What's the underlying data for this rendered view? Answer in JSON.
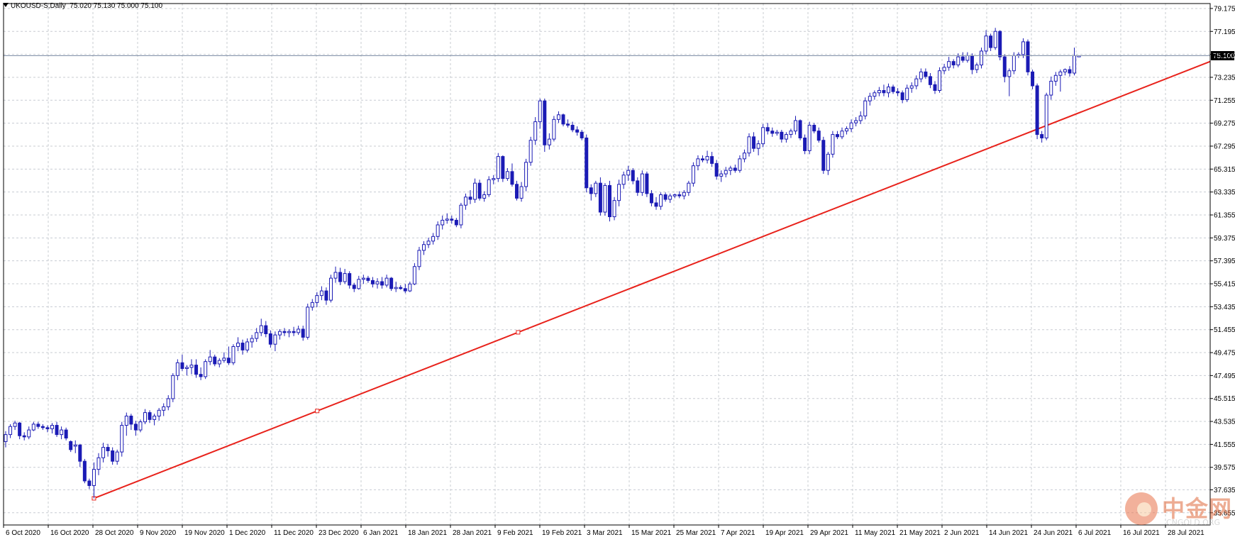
{
  "header": {
    "symbol": "UKOUSD-S,Daily",
    "ohlc": "75.020 75.130 75.000 75.100"
  },
  "watermark": {
    "title": "中金网",
    "subtitle": "CNGOLD.ORG"
  },
  "colors": {
    "background": "#ffffff",
    "grid": "#c8ccd2",
    "candle": "#1b1bb5",
    "trendline": "#e8221b",
    "price_line": "#8090a8",
    "price_tag_bg": "#000000",
    "price_tag_text": "#ffffff"
  },
  "chart_data": {
    "type": "candlestick",
    "symbol": "UKOUSD-S",
    "timeframe": "Daily",
    "current_price": 75.1,
    "current_price_label": "75.100",
    "ylim": [
      34.6,
      79.6
    ],
    "y_ticks": [
      "35.655",
      "37.635",
      "39.575",
      "41.555",
      "43.535",
      "45.515",
      "47.495",
      "49.475",
      "51.455",
      "53.435",
      "55.415",
      "57.395",
      "59.375",
      "61.355",
      "63.335",
      "65.315",
      "67.295",
      "69.275",
      "71.255",
      "73.235",
      "75.215",
      "77.195",
      "79.175"
    ],
    "x_ticks": [
      "6 Oct 2020",
      "16 Oct 2020",
      "28 Oct 2020",
      "9 Nov 2020",
      "19 Nov 2020",
      "1 Dec 2020",
      "11 Dec 2020",
      "23 Dec 2020",
      "6 Jan 2021",
      "18 Jan 2021",
      "28 Jan 2021",
      "9 Feb 2021",
      "19 Feb 2021",
      "3 Mar 2021",
      "15 Mar 2021",
      "25 Mar 2021",
      "7 Apr 2021",
      "19 Apr 2021",
      "29 Apr 2021",
      "11 May 2021",
      "21 May 2021",
      "2 Jun 2021",
      "14 Jun 2021",
      "24 Jun 2021",
      "6 Jul 2021",
      "16 Jul 2021",
      "28 Jul 2021"
    ],
    "grid": true,
    "trendline": {
      "from": [
        "28 Oct 2020",
        36.9
      ],
      "to": [
        "end",
        74.6
      ]
    },
    "candles": [
      [
        41.8,
        42.7,
        41.3,
        42.4
      ],
      [
        42.4,
        43.3,
        42.1,
        43.1
      ],
      [
        43.1,
        43.6,
        42.8,
        43.4
      ],
      [
        43.4,
        43.5,
        42.0,
        42.3
      ],
      [
        42.3,
        42.6,
        41.9,
        42.2
      ],
      [
        42.2,
        43.1,
        42.0,
        42.8
      ],
      [
        42.8,
        43.5,
        42.7,
        43.3
      ],
      [
        43.3,
        43.5,
        42.9,
        43.1
      ],
      [
        43.1,
        43.3,
        42.8,
        43.0
      ],
      [
        43.0,
        43.2,
        42.6,
        42.9
      ],
      [
        42.9,
        43.4,
        42.5,
        43.2
      ],
      [
        43.2,
        43.5,
        42.2,
        42.4
      ],
      [
        42.4,
        43.1,
        42.0,
        42.8
      ],
      [
        42.8,
        43.0,
        41.9,
        42.1
      ],
      [
        41.8,
        41.9,
        40.9,
        41.1
      ],
      [
        41.4,
        41.9,
        40.8,
        41.5
      ],
      [
        41.5,
        41.6,
        39.6,
        40.1
      ],
      [
        40.1,
        40.3,
        38.2,
        38.4
      ],
      [
        38.4,
        38.6,
        37.7,
        38.0
      ],
      [
        38.0,
        40.0,
        36.9,
        39.4
      ],
      [
        39.4,
        40.8,
        38.9,
        40.4
      ],
      [
        40.4,
        41.7,
        40.0,
        41.3
      ],
      [
        41.3,
        41.6,
        40.5,
        41.0
      ],
      [
        41.0,
        41.3,
        39.8,
        40.1
      ],
      [
        40.1,
        41.1,
        39.8,
        40.9
      ],
      [
        40.9,
        43.5,
        40.5,
        43.2
      ],
      [
        43.2,
        44.3,
        42.3,
        44.0
      ],
      [
        44.0,
        44.2,
        42.8,
        43.3
      ],
      [
        43.3,
        43.6,
        42.3,
        42.8
      ],
      [
        42.8,
        43.7,
        42.6,
        43.5
      ],
      [
        43.5,
        44.6,
        43.3,
        44.3
      ],
      [
        44.3,
        44.5,
        43.4,
        43.7
      ],
      [
        43.7,
        44.2,
        43.2,
        44.0
      ],
      [
        44.0,
        44.7,
        43.6,
        44.5
      ],
      [
        44.5,
        45.1,
        44.0,
        44.8
      ],
      [
        44.8,
        45.8,
        44.5,
        45.5
      ],
      [
        45.5,
        47.7,
        45.2,
        47.5
      ],
      [
        47.5,
        48.9,
        47.1,
        48.6
      ],
      [
        48.6,
        49.3,
        47.9,
        48.1
      ],
      [
        48.1,
        48.4,
        47.5,
        48.2
      ],
      [
        48.2,
        48.9,
        47.6,
        48.4
      ],
      [
        48.4,
        48.9,
        47.3,
        47.6
      ],
      [
        47.6,
        48.2,
        47.1,
        47.4
      ],
      [
        47.4,
        48.9,
        47.2,
        48.7
      ],
      [
        48.7,
        49.7,
        48.4,
        49.1
      ],
      [
        49.1,
        49.3,
        48.3,
        48.5
      ],
      [
        48.5,
        49.0,
        48.2,
        48.8
      ],
      [
        48.8,
        49.5,
        48.6,
        49.0
      ],
      [
        49.0,
        50.0,
        48.4,
        48.6
      ],
      [
        48.6,
        50.2,
        48.4,
        50.0
      ],
      [
        50.0,
        50.8,
        49.6,
        50.3
      ],
      [
        50.3,
        50.6,
        49.3,
        49.7
      ],
      [
        49.7,
        50.7,
        49.5,
        50.4
      ],
      [
        50.4,
        51.0,
        49.9,
        50.7
      ],
      [
        50.7,
        51.6,
        50.4,
        51.2
      ],
      [
        51.2,
        52.4,
        50.9,
        51.8
      ],
      [
        51.8,
        52.2,
        50.8,
        51.1
      ],
      [
        51.1,
        51.4,
        49.9,
        50.2
      ],
      [
        50.2,
        51.3,
        49.6,
        51.0
      ],
      [
        51.0,
        51.5,
        50.6,
        51.3
      ],
      [
        51.3,
        51.6,
        50.9,
        51.2
      ],
      [
        51.2,
        51.5,
        50.8,
        51.3
      ],
      [
        51.3,
        51.7,
        50.9,
        51.2
      ],
      [
        51.2,
        51.8,
        51.0,
        51.5
      ],
      [
        51.5,
        51.8,
        50.5,
        50.8
      ],
      [
        50.8,
        53.7,
        50.6,
        53.4
      ],
      [
        53.4,
        54.1,
        53.1,
        53.8
      ],
      [
        53.8,
        54.7,
        53.4,
        54.4
      ],
      [
        54.4,
        55.2,
        54.0,
        54.8
      ],
      [
        54.8,
        55.1,
        53.6,
        54.0
      ],
      [
        54.0,
        56.2,
        53.8,
        55.9
      ],
      [
        55.9,
        56.9,
        55.5,
        56.4
      ],
      [
        56.4,
        56.8,
        55.3,
        55.6
      ],
      [
        55.6,
        56.7,
        55.4,
        56.3
      ],
      [
        56.3,
        56.5,
        55.0,
        55.3
      ],
      [
        55.3,
        55.5,
        54.7,
        55.0
      ],
      [
        55.0,
        56.1,
        54.9,
        55.8
      ],
      [
        55.8,
        56.2,
        55.4,
        55.9
      ],
      [
        55.9,
        56.1,
        55.5,
        55.7
      ],
      [
        55.7,
        56.0,
        55.1,
        55.4
      ],
      [
        55.4,
        55.9,
        55.0,
        55.6
      ],
      [
        55.6,
        56.0,
        55.0,
        55.3
      ],
      [
        55.3,
        56.2,
        55.1,
        55.9
      ],
      [
        55.9,
        56.0,
        54.8,
        55.0
      ],
      [
        55.0,
        55.6,
        54.7,
        55.1
      ],
      [
        55.1,
        55.3,
        54.9,
        55.0
      ],
      [
        55.0,
        55.4,
        54.6,
        54.8
      ],
      [
        54.8,
        55.6,
        54.7,
        55.4
      ],
      [
        55.4,
        57.2,
        55.3,
        56.9
      ],
      [
        56.9,
        58.6,
        56.6,
        58.3
      ],
      [
        58.3,
        59.1,
        57.9,
        58.8
      ],
      [
        58.8,
        59.4,
        58.5,
        59.1
      ],
      [
        59.1,
        59.8,
        58.8,
        59.5
      ],
      [
        59.5,
        60.8,
        59.2,
        60.5
      ],
      [
        60.5,
        61.3,
        60.1,
        60.9
      ],
      [
        60.9,
        61.5,
        60.6,
        61.0
      ],
      [
        61.0,
        61.3,
        60.6,
        60.9
      ],
      [
        60.9,
        61.1,
        60.3,
        60.5
      ],
      [
        60.5,
        62.4,
        60.2,
        62.2
      ],
      [
        62.2,
        63.2,
        61.8,
        62.9
      ],
      [
        62.9,
        63.5,
        62.3,
        62.7
      ],
      [
        62.7,
        64.5,
        62.4,
        64.1
      ],
      [
        64.1,
        64.4,
        62.6,
        62.8
      ],
      [
        62.8,
        63.4,
        62.5,
        63.1
      ],
      [
        63.1,
        64.7,
        62.9,
        64.4
      ],
      [
        64.4,
        64.8,
        64.0,
        64.5
      ],
      [
        64.5,
        66.7,
        64.2,
        66.4
      ],
      [
        66.4,
        66.5,
        64.2,
        64.5
      ],
      [
        64.5,
        65.4,
        64.3,
        65.1
      ],
      [
        65.1,
        65.8,
        63.8,
        64.0
      ],
      [
        64.0,
        64.3,
        62.6,
        62.8
      ],
      [
        62.8,
        64.2,
        62.5,
        63.8
      ],
      [
        63.8,
        66.2,
        63.4,
        65.9
      ],
      [
        65.9,
        68.1,
        65.6,
        67.8
      ],
      [
        67.8,
        69.8,
        67.4,
        69.4
      ],
      [
        69.4,
        71.4,
        68.8,
        71.2
      ],
      [
        71.2,
        71.4,
        66.8,
        67.4
      ],
      [
        67.4,
        68.4,
        67.0,
        67.9
      ],
      [
        67.9,
        69.9,
        67.7,
        69.6
      ],
      [
        69.6,
        70.3,
        69.3,
        70.0
      ],
      [
        70.0,
        70.1,
        69.0,
        69.2
      ],
      [
        69.2,
        69.6,
        68.9,
        69.1
      ],
      [
        69.1,
        69.4,
        68.5,
        68.7
      ],
      [
        68.7,
        69.0,
        68.2,
        68.5
      ],
      [
        68.5,
        68.7,
        67.8,
        68.0
      ],
      [
        68.0,
        68.3,
        63.3,
        63.7
      ],
      [
        63.7,
        64.0,
        62.6,
        63.2
      ],
      [
        63.2,
        64.3,
        62.9,
        64.1
      ],
      [
        64.1,
        64.6,
        61.3,
        61.6
      ],
      [
        61.6,
        64.1,
        61.3,
        63.9
      ],
      [
        63.9,
        64.3,
        60.8,
        61.2
      ],
      [
        61.2,
        62.9,
        60.9,
        62.6
      ],
      [
        62.6,
        64.4,
        62.1,
        64.0
      ],
      [
        64.0,
        65.1,
        63.6,
        64.8
      ],
      [
        64.8,
        65.6,
        64.3,
        65.2
      ],
      [
        65.2,
        65.4,
        64.0,
        64.3
      ],
      [
        64.3,
        64.6,
        63.0,
        63.3
      ],
      [
        63.3,
        65.2,
        63.0,
        64.9
      ],
      [
        64.9,
        65.1,
        62.9,
        63.2
      ],
      [
        63.2,
        63.5,
        62.1,
        62.4
      ],
      [
        62.4,
        62.9,
        61.8,
        62.1
      ],
      [
        62.1,
        63.3,
        61.8,
        63.1
      ],
      [
        63.1,
        63.3,
        62.5,
        62.7
      ],
      [
        62.7,
        63.2,
        62.4,
        63.0
      ],
      [
        63.0,
        63.2,
        62.8,
        63.1
      ],
      [
        63.1,
        63.4,
        62.8,
        63.0
      ],
      [
        63.0,
        63.5,
        62.7,
        63.3
      ],
      [
        63.3,
        64.3,
        63.0,
        64.1
      ],
      [
        64.1,
        65.9,
        63.8,
        65.6
      ],
      [
        65.6,
        66.5,
        65.2,
        66.2
      ],
      [
        66.2,
        66.5,
        65.9,
        66.1
      ],
      [
        66.1,
        66.9,
        65.8,
        66.4
      ],
      [
        66.4,
        66.8,
        65.5,
        65.8
      ],
      [
        65.8,
        66.1,
        64.4,
        64.7
      ],
      [
        64.7,
        65.2,
        64.2,
        64.9
      ],
      [
        64.9,
        65.5,
        64.6,
        65.2
      ],
      [
        65.2,
        65.6,
        64.8,
        65.4
      ],
      [
        65.4,
        65.7,
        65.0,
        65.2
      ],
      [
        65.2,
        66.5,
        65.0,
        66.2
      ],
      [
        66.2,
        67.0,
        65.9,
        66.7
      ],
      [
        66.7,
        68.4,
        66.4,
        68.1
      ],
      [
        68.1,
        68.5,
        66.8,
        67.1
      ],
      [
        67.1,
        67.8,
        66.5,
        67.5
      ],
      [
        67.5,
        69.2,
        67.2,
        68.9
      ],
      [
        68.9,
        69.3,
        68.3,
        68.6
      ],
      [
        68.6,
        68.9,
        68.1,
        68.4
      ],
      [
        68.4,
        68.7,
        68.2,
        68.5
      ],
      [
        68.5,
        68.7,
        67.6,
        67.9
      ],
      [
        67.9,
        68.5,
        67.6,
        68.3
      ],
      [
        68.3,
        68.8,
        68.0,
        68.6
      ],
      [
        68.6,
        69.9,
        68.3,
        69.5
      ],
      [
        69.5,
        69.6,
        67.8,
        68.0
      ],
      [
        68.0,
        68.3,
        66.6,
        66.9
      ],
      [
        66.9,
        69.4,
        66.6,
        69.1
      ],
      [
        69.1,
        69.3,
        68.4,
        68.6
      ],
      [
        68.6,
        68.9,
        67.6,
        67.8
      ],
      [
        67.8,
        68.1,
        64.9,
        65.2
      ],
      [
        65.2,
        66.8,
        64.8,
        66.6
      ],
      [
        66.6,
        68.6,
        66.3,
        68.3
      ],
      [
        68.3,
        68.6,
        67.9,
        68.1
      ],
      [
        68.1,
        68.9,
        67.9,
        68.6
      ],
      [
        68.6,
        69.0,
        68.3,
        68.8
      ],
      [
        68.8,
        69.6,
        68.5,
        69.3
      ],
      [
        69.3,
        69.8,
        69.0,
        69.5
      ],
      [
        69.5,
        70.3,
        69.2,
        69.9
      ],
      [
        69.9,
        71.5,
        69.6,
        71.2
      ],
      [
        71.2,
        71.9,
        70.8,
        71.6
      ],
      [
        71.6,
        72.1,
        71.3,
        71.9
      ],
      [
        71.9,
        72.4,
        71.6,
        72.1
      ],
      [
        72.1,
        72.6,
        71.6,
        71.9
      ],
      [
        71.9,
        72.7,
        71.5,
        72.4
      ],
      [
        72.4,
        72.6,
        71.8,
        72.0
      ],
      [
        72.0,
        72.3,
        71.6,
        71.9
      ],
      [
        71.9,
        72.1,
        71.0,
        71.3
      ],
      [
        71.3,
        72.6,
        71.1,
        72.3
      ],
      [
        72.3,
        72.8,
        71.9,
        72.5
      ],
      [
        72.5,
        73.4,
        72.2,
        73.1
      ],
      [
        73.1,
        74.0,
        72.8,
        73.7
      ],
      [
        73.7,
        74.0,
        73.1,
        73.3
      ],
      [
        73.3,
        73.6,
        72.3,
        72.6
      ],
      [
        72.6,
        72.9,
        71.8,
        72.1
      ],
      [
        72.1,
        74.1,
        71.9,
        73.8
      ],
      [
        73.8,
        74.4,
        73.5,
        74.1
      ],
      [
        74.1,
        75.0,
        73.8,
        74.6
      ],
      [
        74.6,
        74.8,
        74.0,
        74.3
      ],
      [
        74.3,
        75.3,
        74.1,
        75.0
      ],
      [
        75.0,
        75.4,
        74.5,
        74.7
      ],
      [
        74.7,
        75.4,
        74.5,
        75.1
      ],
      [
        75.1,
        75.3,
        73.5,
        73.9
      ],
      [
        73.9,
        74.5,
        73.6,
        74.3
      ],
      [
        74.3,
        75.8,
        74.0,
        75.5
      ],
      [
        75.5,
        77.3,
        75.2,
        76.8
      ],
      [
        76.8,
        77.0,
        75.5,
        75.8
      ],
      [
        75.8,
        77.5,
        75.6,
        77.2
      ],
      [
        77.2,
        77.3,
        74.7,
        75.0
      ],
      [
        75.0,
        75.2,
        72.8,
        73.3
      ],
      [
        73.3,
        74.0,
        71.6,
        73.8
      ],
      [
        73.8,
        75.4,
        73.5,
        75.1
      ],
      [
        75.1,
        75.4,
        74.9,
        75.2
      ],
      [
        75.2,
        76.6,
        74.9,
        76.3
      ],
      [
        76.3,
        76.5,
        73.4,
        73.7
      ],
      [
        73.7,
        73.9,
        72.2,
        72.5
      ],
      [
        72.5,
        72.7,
        67.9,
        68.3
      ],
      [
        68.3,
        68.6,
        67.6,
        68.0
      ],
      [
        68.0,
        71.9,
        67.8,
        71.7
      ],
      [
        71.7,
        73.3,
        71.3,
        72.9
      ],
      [
        72.9,
        73.7,
        72.5,
        73.4
      ],
      [
        73.4,
        73.9,
        72.0,
        73.7
      ],
      [
        73.7,
        74.0,
        73.4,
        73.9
      ],
      [
        73.9,
        74.2,
        73.3,
        73.6
      ],
      [
        73.6,
        75.8,
        73.4,
        75.1
      ],
      [
        75.0,
        75.1,
        75.0,
        75.1
      ]
    ]
  }
}
